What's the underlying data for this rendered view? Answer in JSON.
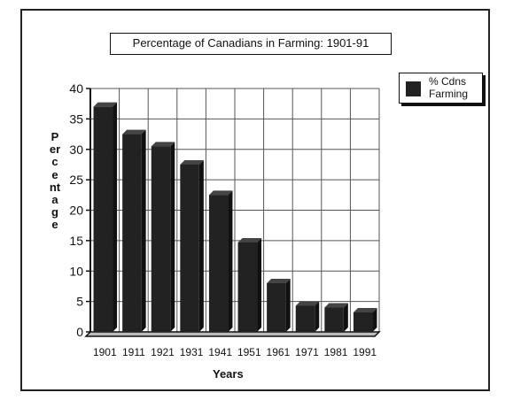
{
  "chart_data": {
    "type": "bar",
    "title": "Percentage of Canadians in Farming:  1901-91",
    "xlabel": "Years",
    "ylabel": "Percentage",
    "categories": [
      "1901",
      "1911",
      "1921",
      "1931",
      "1941",
      "1951",
      "1961",
      "1971",
      "1981",
      "1991"
    ],
    "series": [
      {
        "name": "% Cdns Farming",
        "values": [
          37,
          32.5,
          30.5,
          27.5,
          22.5,
          14.7,
          8,
          4.3,
          4,
          3.2
        ]
      }
    ],
    "ylim": [
      0,
      40
    ],
    "yticks": [
      "0",
      "5",
      "10",
      "15",
      "20",
      "25",
      "30",
      "35",
      "40"
    ],
    "grid": true,
    "legend": "top-right",
    "colors": {
      "bar": "#222222",
      "grid": "#555555"
    }
  },
  "legend": {
    "line1": "% Cdns",
    "line2": "Farming"
  }
}
